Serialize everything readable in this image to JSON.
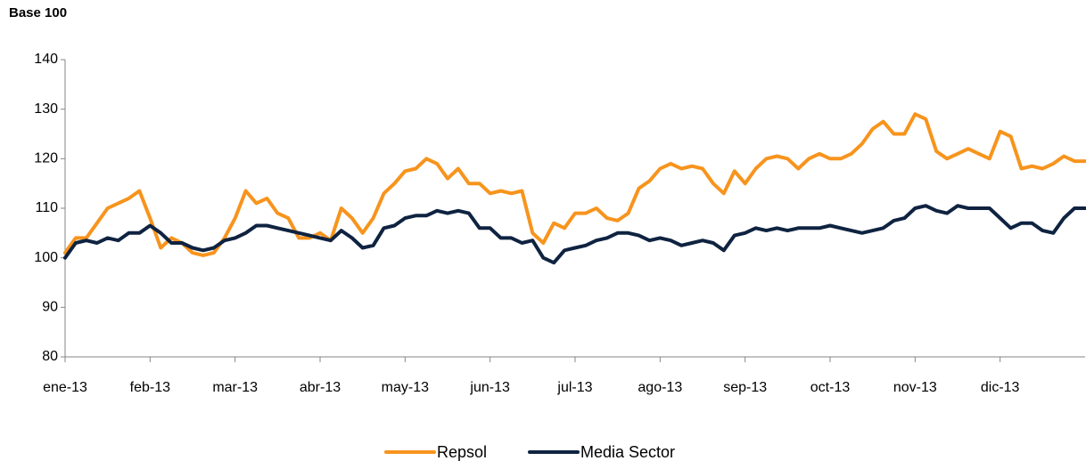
{
  "chart_data": {
    "type": "line",
    "title": "Base 100",
    "categories": [
      "ene-13",
      null,
      null,
      null,
      null,
      null,
      null,
      null,
      "feb-13",
      null,
      null,
      null,
      null,
      null,
      null,
      null,
      "mar-13",
      null,
      null,
      null,
      null,
      null,
      null,
      null,
      "abr-13",
      null,
      null,
      null,
      null,
      null,
      null,
      null,
      "may-13",
      null,
      null,
      null,
      null,
      null,
      null,
      null,
      "jun-13",
      null,
      null,
      null,
      null,
      null,
      null,
      null,
      "jul-13",
      null,
      null,
      null,
      null,
      null,
      null,
      null,
      "ago-13",
      null,
      null,
      null,
      null,
      null,
      null,
      null,
      "sep-13",
      null,
      null,
      null,
      null,
      null,
      null,
      null,
      "oct-13",
      null,
      null,
      null,
      null,
      null,
      null,
      null,
      "nov-13",
      null,
      null,
      null,
      null,
      null,
      null,
      null,
      "dic-13",
      null,
      null,
      null,
      null,
      null,
      null,
      null,
      null
    ],
    "series": [
      {
        "name": "Repsol",
        "color": "#f7941d",
        "values": [
          101,
          104,
          104,
          107,
          110,
          111,
          112,
          113.5,
          108,
          102,
          104,
          103,
          101,
          100.5,
          101,
          104,
          108,
          113.5,
          111,
          112,
          109,
          108,
          104,
          104,
          105,
          103.5,
          110,
          108,
          105,
          108,
          113,
          115,
          117.5,
          118,
          120,
          119,
          116,
          118,
          115,
          115,
          113,
          113.5,
          113,
          113.5,
          105,
          103,
          107,
          106,
          109,
          109,
          110,
          108,
          107.5,
          109,
          114,
          115.5,
          118,
          119,
          118,
          118.5,
          118,
          115,
          113,
          117.5,
          115,
          118,
          120,
          120.5,
          120,
          118,
          120,
          121,
          120,
          120,
          121,
          123,
          126,
          127.5,
          125,
          125,
          129,
          128,
          121.5,
          120,
          121,
          122,
          121,
          120,
          125.5,
          124.5,
          118,
          118.5,
          118,
          119,
          120.5,
          119.5,
          119.5
        ]
      },
      {
        "name": "Media Sector",
        "color": "#0f2341",
        "values": [
          100,
          103,
          103.5,
          103,
          104,
          103.5,
          105,
          105,
          106.5,
          105,
          103,
          103,
          102,
          101.5,
          102,
          103.5,
          104,
          105,
          106.5,
          106.5,
          106,
          105.5,
          105,
          104.5,
          104,
          103.5,
          105.5,
          104,
          102,
          102.5,
          106,
          106.5,
          108,
          108.5,
          108.5,
          109.5,
          109,
          109.5,
          109,
          106,
          106,
          104,
          104,
          103,
          103.5,
          100,
          99,
          101.5,
          102,
          102.5,
          103.5,
          104,
          105,
          105,
          104.5,
          103.5,
          104,
          103.5,
          102.5,
          103,
          103.5,
          103,
          101.5,
          104.5,
          105,
          106,
          105.5,
          106,
          105.5,
          106,
          106,
          106,
          106.5,
          106,
          105.5,
          105,
          105.5,
          106,
          107.5,
          108,
          110,
          110.5,
          109.5,
          109,
          110.5,
          110,
          110,
          110,
          108,
          106,
          107,
          107,
          105.5,
          105,
          108,
          110,
          110
        ]
      }
    ],
    "ylim": [
      80,
      140
    ],
    "yticks": [
      80,
      90,
      100,
      110,
      120,
      130,
      140
    ],
    "grid": false,
    "legend": "bottom"
  }
}
